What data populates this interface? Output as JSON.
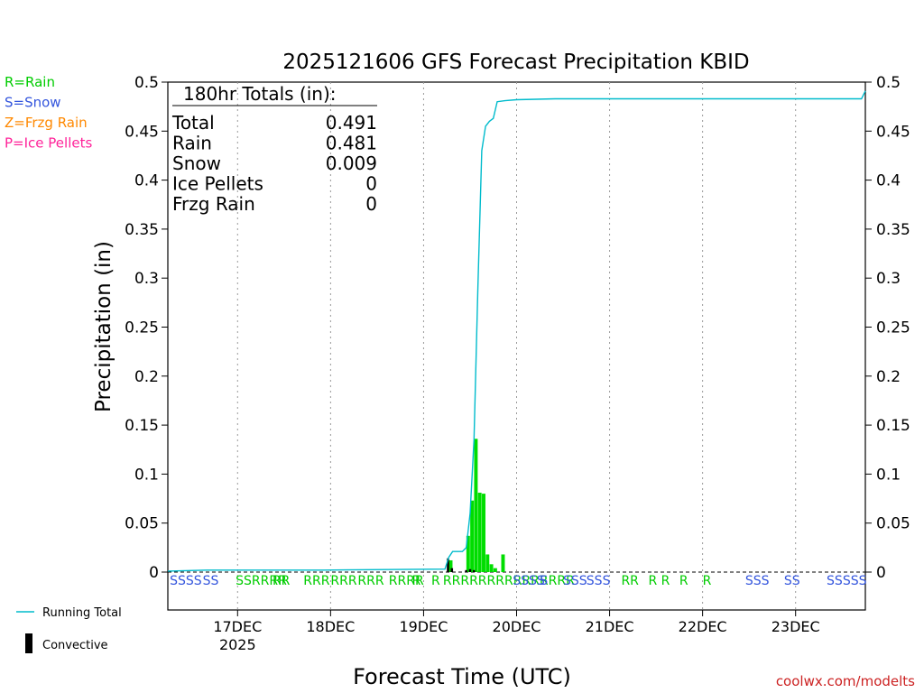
{
  "chart_data": {
    "type": "bar",
    "title": "2025121606 GFS Forecast Precipitation KBID",
    "xlabel": "Forecast Time (UTC)",
    "ylabel": "Precipitation (in)",
    "ylim": [
      0,
      0.5
    ],
    "yticks": [
      "0",
      "0.05",
      "0.1",
      "0.15",
      "0.2",
      "0.25",
      "0.3",
      "0.35",
      "0.4",
      "0.45",
      "0.5"
    ],
    "xlim_hours": [
      0,
      180
    ],
    "xticks": [
      {
        "hour": 18,
        "label": "17DEC",
        "sublabel": "2025"
      },
      {
        "hour": 42,
        "label": "18DEC",
        "sublabel": ""
      },
      {
        "hour": 66,
        "label": "19DEC",
        "sublabel": ""
      },
      {
        "hour": 90,
        "label": "20DEC",
        "sublabel": ""
      },
      {
        "hour": 114,
        "label": "21DEC",
        "sublabel": ""
      },
      {
        "hour": 138,
        "label": "22DEC",
        "sublabel": ""
      },
      {
        "hour": 162,
        "label": "23DEC",
        "sublabel": ""
      }
    ],
    "grid": "vertical dotted at day boundaries",
    "legend_top_left": [
      {
        "text": "R=Rain",
        "color": "#00cc00"
      },
      {
        "text": "S=Snow",
        "color": "#3355dd"
      },
      {
        "text": "Z=Frzg Rain",
        "color": "#ff8800"
      },
      {
        "text": "P=Ice Pellets",
        "color": "#ff2299"
      }
    ],
    "legend_bottom_left": [
      {
        "text": "Running Total",
        "color": "#00bbcc",
        "kind": "line"
      },
      {
        "text": "Convective",
        "color": "#000000",
        "kind": "bar"
      }
    ],
    "totals": {
      "header": "180hr Totals (in):",
      "rows": [
        {
          "label": "Total",
          "value": "0.491"
        },
        {
          "label": "Rain",
          "value": "0.481"
        },
        {
          "label": "Snow",
          "value": "0.009"
        },
        {
          "label": "Ice Pellets",
          "value": "0"
        },
        {
          "label": "Frzg Rain",
          "value": "0"
        }
      ]
    },
    "series": [
      {
        "name": "Running Total",
        "kind": "line",
        "color": "#00bbcc",
        "points": [
          [
            0,
            0.001
          ],
          [
            10,
            0.002
          ],
          [
            40,
            0.002
          ],
          [
            71.5,
            0.003
          ],
          [
            72.5,
            0.015
          ],
          [
            73.5,
            0.021
          ],
          [
            76,
            0.021
          ],
          [
            77,
            0.025
          ],
          [
            78,
            0.06
          ],
          [
            79,
            0.135
          ],
          [
            80,
            0.29
          ],
          [
            81,
            0.43
          ],
          [
            82,
            0.455
          ],
          [
            83,
            0.46
          ],
          [
            84,
            0.463
          ],
          [
            85,
            0.48
          ],
          [
            87,
            0.481
          ],
          [
            90,
            0.482
          ],
          [
            100,
            0.483
          ],
          [
            120,
            0.483
          ],
          [
            150,
            0.483
          ],
          [
            179,
            0.483
          ],
          [
            180,
            0.491
          ]
        ]
      },
      {
        "name": "",
        "kind": "bar",
        "color": "#00dd00",
        "bars": [
          [
            73,
            0.012
          ],
          [
            77.5,
            0.037
          ],
          [
            78.5,
            0.073
          ],
          [
            79.5,
            0.136
          ],
          [
            80.5,
            0.081
          ],
          [
            81.5,
            0.08
          ],
          [
            82.5,
            0.018
          ],
          [
            83.5,
            0.008
          ],
          [
            84.5,
            0.004
          ],
          [
            86.5,
            0.018
          ]
        ]
      },
      {
        "name": "Convective",
        "kind": "bar",
        "color": "#000000",
        "bars": [
          [
            72.3,
            0.014
          ],
          [
            73.3,
            0.004
          ],
          [
            77,
            0.002
          ],
          [
            78,
            0.003
          ],
          [
            79,
            0.002
          ]
        ]
      }
    ],
    "ptype_markers": [
      {
        "hour": 0.5,
        "text": "SSSS",
        "color": "#3355dd"
      },
      {
        "hour": 9,
        "text": "SS",
        "color": "#3355dd"
      },
      {
        "hour": 17.5,
        "text": "SSRRRR",
        "color": "#00cc00"
      },
      {
        "hour": 27,
        "text": "RR",
        "color": "#00cc00"
      },
      {
        "hour": 35,
        "text": "RRR",
        "color": "#00cc00"
      },
      {
        "hour": 42,
        "text": "RRR",
        "color": "#00cc00"
      },
      {
        "hour": 49,
        "text": "RRR",
        "color": "#00cc00"
      },
      {
        "hour": 57,
        "text": "RRRR",
        "color": "#00cc00"
      },
      {
        "hour": 63,
        "text": "R",
        "color": "#00cc00"
      },
      {
        "hour": 68,
        "text": "R",
        "color": "#00cc00"
      },
      {
        "hour": 71,
        "text": "RRRRRRRRRRRRRRR",
        "color": "#00cc00"
      },
      {
        "hour": 89,
        "text": "SSSS",
        "color": "#3355dd"
      },
      {
        "hour": 96,
        "text": "S",
        "color": "#3355dd"
      },
      {
        "hour": 102,
        "text": "SSS",
        "color": "#3355dd"
      },
      {
        "hour": 108,
        "text": "SSS",
        "color": "#3355dd"
      },
      {
        "hour": 117,
        "text": "RR",
        "color": "#00cc00"
      },
      {
        "hour": 124,
        "text": "R R",
        "color": "#00cc00"
      },
      {
        "hour": 132,
        "text": "R",
        "color": "#00cc00"
      },
      {
        "hour": 138,
        "text": "R",
        "color": "#00cc00"
      },
      {
        "hour": 149,
        "text": "SSS",
        "color": "#3355dd"
      },
      {
        "hour": 159,
        "text": "SS",
        "color": "#3355dd"
      },
      {
        "hour": 170,
        "text": "SSSSS",
        "color": "#3355dd"
      }
    ],
    "credit": "coolwx.com/modelts"
  }
}
